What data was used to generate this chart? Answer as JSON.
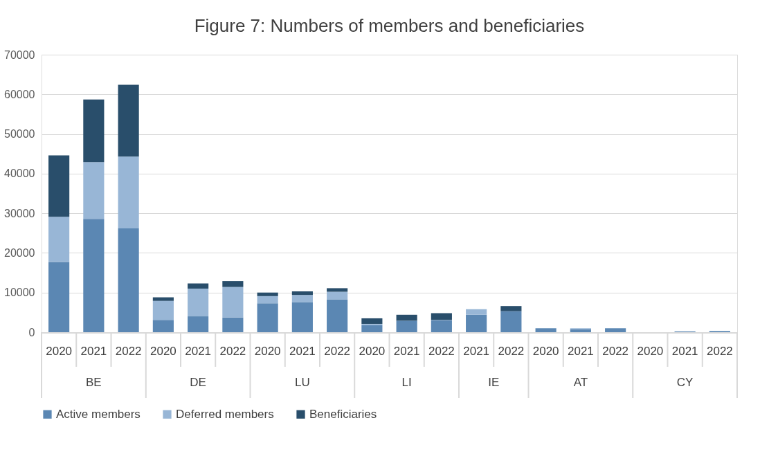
{
  "chart_data": {
    "type": "bar",
    "title": "Figure 7: Numbers of members and beneficiaries",
    "stacked": true,
    "categories": [
      "2020",
      "2021",
      "2022",
      "2020",
      "2021",
      "2022",
      "2020",
      "2021",
      "2022",
      "2020",
      "2021",
      "2022",
      "2021",
      "2022",
      "2020",
      "2021",
      "2022",
      "2020",
      "2021",
      "2022"
    ],
    "annotations": [
      "BE",
      "DE",
      "LU",
      "LI",
      "IE",
      "AT",
      "CY"
    ],
    "series": [
      {
        "name": "Active members",
        "color": "#5b87b3",
        "values": [
          17700,
          28600,
          26200,
          3100,
          4000,
          3700,
          7300,
          7600,
          8300,
          1800,
          2900,
          3000,
          4400,
          5300,
          1000,
          800,
          1000,
          0,
          200,
          300
        ]
      },
      {
        "name": "Deferred members",
        "color": "#98b6d6",
        "values": [
          11400,
          14300,
          18100,
          4800,
          7000,
          7700,
          1800,
          1800,
          1900,
          300,
          0,
          100,
          1400,
          0,
          0,
          200,
          0,
          0,
          0,
          null
        ]
      },
      {
        "name": "Beneficiaries",
        "color": "#294e6b",
        "values": [
          15500,
          15800,
          18100,
          900,
          1300,
          1500,
          900,
          900,
          900,
          1400,
          1500,
          1700,
          0,
          1300,
          0,
          0,
          0,
          0,
          0,
          0
        ]
      }
    ],
    "ylim": [
      0,
      70000
    ],
    "yticks": [
      0,
      10000,
      20000,
      30000,
      40000,
      50000,
      60000,
      70000
    ],
    "grid": "y",
    "legend": "bottom"
  }
}
